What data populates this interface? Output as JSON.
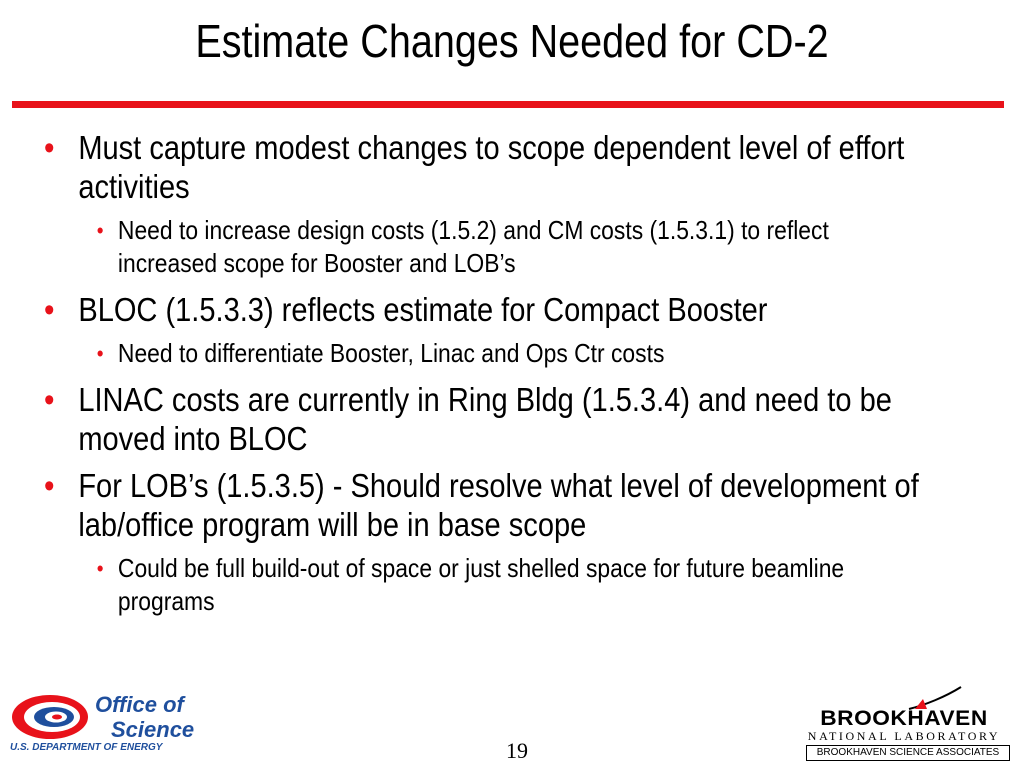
{
  "slide": {
    "title": "Estimate Changes Needed for CD-2",
    "page_number": "19"
  },
  "bullets": [
    {
      "text": "Must capture modest changes to scope dependent level of effort activities",
      "sub": [
        "Need to increase design costs (1.5.2) and CM costs (1.5.3.1) to reflect increased scope for Booster and LOB’s"
      ]
    },
    {
      "text": "BLOC (1.5.3.3) reflects estimate for Compact Booster",
      "sub": [
        "Need to differentiate Booster, Linac and Ops Ctr costs"
      ]
    },
    {
      "text": "LINAC costs are currently in Ring Bldg (1.5.3.4) and need to be moved into BLOC",
      "sub": []
    },
    {
      "text": "For LOB’s (1.5.3.5) - Should resolve what level of development of lab/office program will be in base scope",
      "sub": [
        "Could be full build-out of space or just shelled space for future beamline programs"
      ]
    }
  ],
  "bullet_glyph": "•",
  "footer": {
    "office_of_science_line1": "Office of",
    "office_of_science_line2": "Science",
    "doe": "U.S. DEPARTMENT OF ENERGY",
    "bnl_name": "BROOKHAVEN",
    "bnl_sub": "NATIONAL LABORATORY",
    "bnl_assoc": "BROOKHAVEN SCIENCE ASSOCIATES"
  },
  "colors": {
    "accent_red": "#e8121a",
    "doe_blue": "#1f4f9d",
    "text": "#000000"
  }
}
